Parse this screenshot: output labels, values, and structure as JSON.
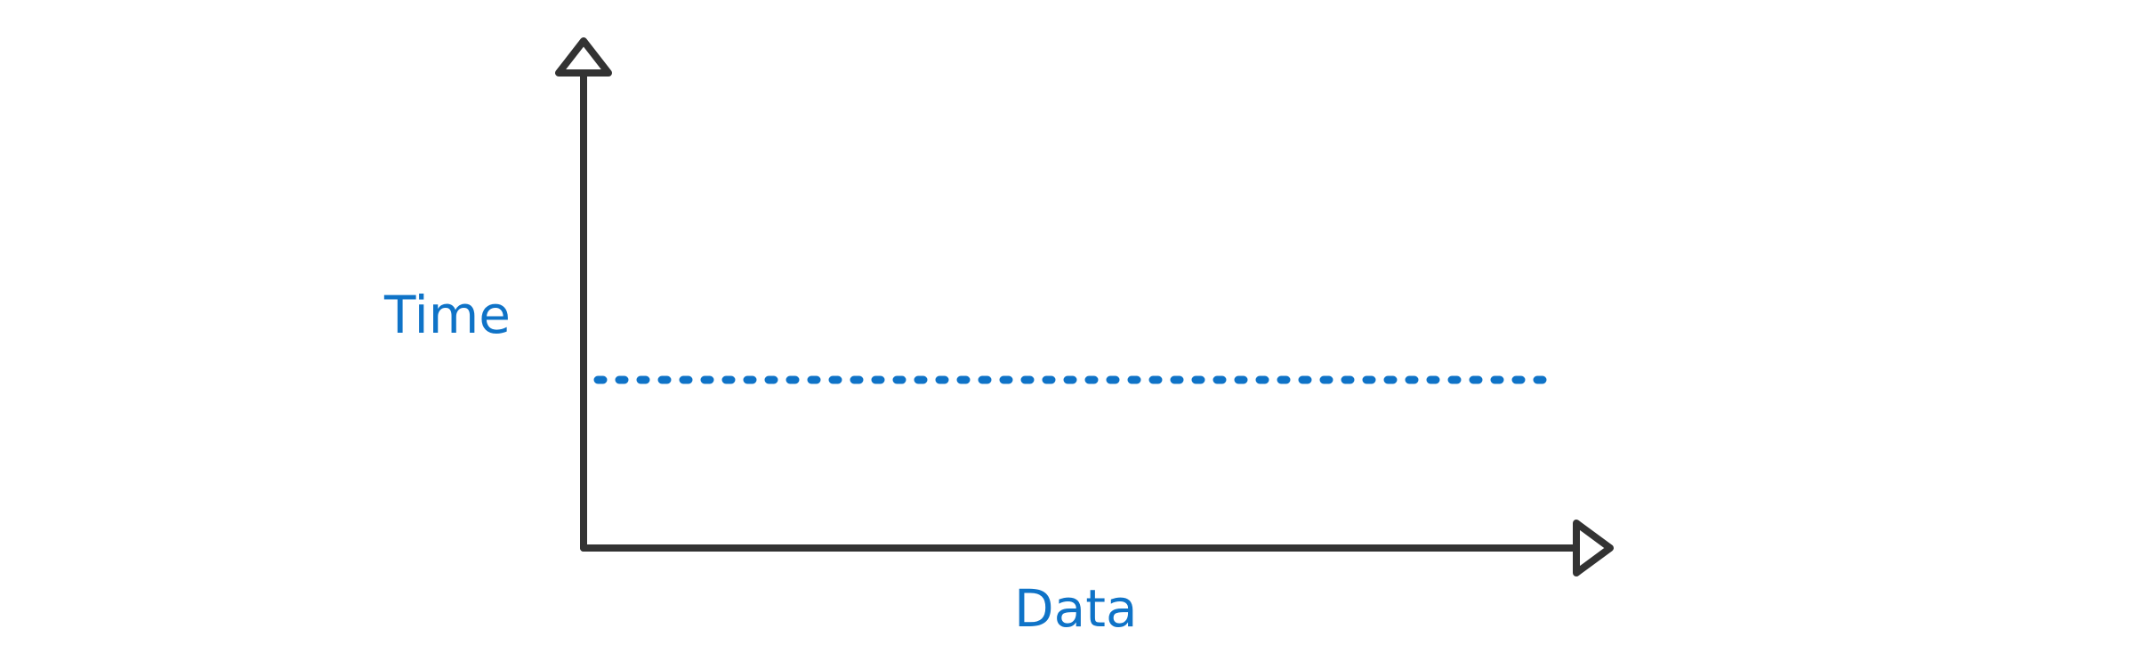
{
  "labels": {
    "y_axis": "Time",
    "x_axis": "Data"
  },
  "colors": {
    "axis": "#333333",
    "accent": "#0f73c7"
  }
}
